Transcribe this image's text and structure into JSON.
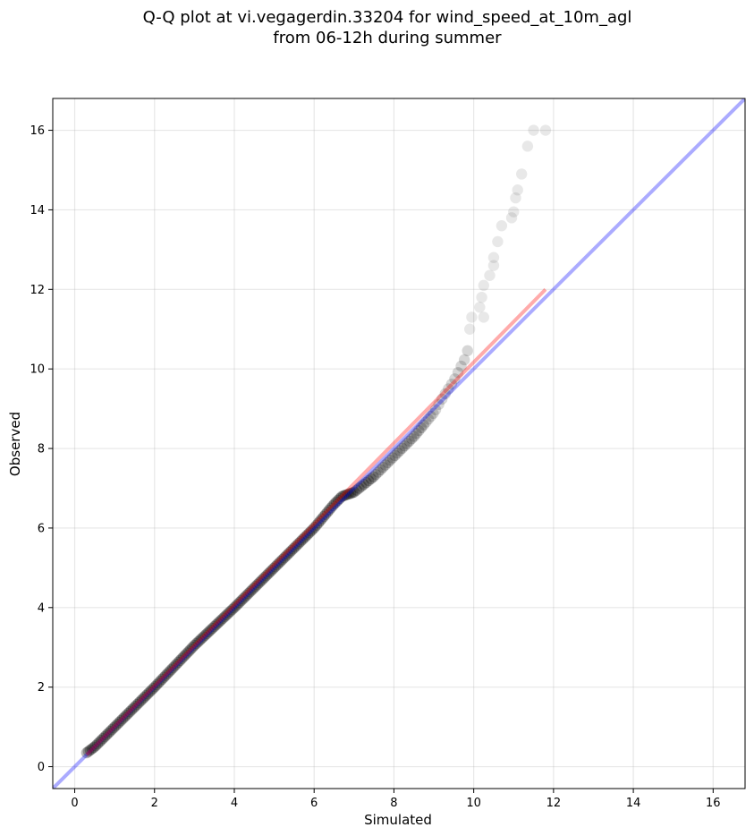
{
  "chart_data": {
    "type": "scatter",
    "title_line1": "Q-Q plot at vi.vegagerdin.33204 for wind_speed_at_10m_agl",
    "title_line2": "from 06-12h during summer",
    "xlabel": "Simulated",
    "ylabel": "Observed",
    "xlim": [
      -0.55,
      16.8
    ],
    "ylim": [
      -0.55,
      16.8
    ],
    "xticks": [
      "0",
      "2",
      "4",
      "6",
      "8",
      "10",
      "12",
      "14",
      "16"
    ],
    "yticks": [
      "0",
      "2",
      "4",
      "6",
      "8",
      "10",
      "12",
      "14",
      "16"
    ],
    "grid": true,
    "colors": {
      "points": "#000000",
      "identity_line": "#0000ff",
      "fit_line": "#ff0000"
    },
    "identity_line": {
      "x": [
        -0.55,
        16.8
      ],
      "y": [
        -0.55,
        16.8
      ]
    },
    "fit_line": {
      "x": [
        0.3,
        11.8
      ],
      "y": [
        0.3,
        12.0
      ]
    },
    "quantile_anchors": {
      "x": [
        0.3,
        0.5,
        1.0,
        2.0,
        3.0,
        4.0,
        5.0,
        6.0,
        6.5,
        6.7,
        7.0,
        7.5,
        8.0,
        8.5,
        9.0,
        9.3,
        9.5,
        9.8,
        10.0,
        10.3,
        10.6,
        10.9,
        11.1,
        11.3,
        11.5,
        11.8
      ],
      "y": [
        0.35,
        0.5,
        1.0,
        2.0,
        3.05,
        4.0,
        5.0,
        6.0,
        6.6,
        6.8,
        6.9,
        7.3,
        7.8,
        8.3,
        8.9,
        9.4,
        9.7,
        10.3,
        11.0,
        11.7,
        12.7,
        13.7,
        14.4,
        15.2,
        16.0,
        16.0
      ]
    },
    "outer_points": [
      {
        "x": 11.5,
        "y": 16.0
      },
      {
        "x": 11.8,
        "y": 16.0
      },
      {
        "x": 11.35,
        "y": 15.6
      },
      {
        "x": 11.2,
        "y": 14.9
      },
      {
        "x": 11.1,
        "y": 14.5
      },
      {
        "x": 11.05,
        "y": 14.3
      },
      {
        "x": 11.0,
        "y": 13.95
      },
      {
        "x": 10.95,
        "y": 13.8
      },
      {
        "x": 10.7,
        "y": 13.6
      },
      {
        "x": 10.6,
        "y": 13.2
      },
      {
        "x": 10.5,
        "y": 12.8
      },
      {
        "x": 10.5,
        "y": 12.6
      },
      {
        "x": 10.4,
        "y": 12.35
      },
      {
        "x": 10.25,
        "y": 12.1
      },
      {
        "x": 10.2,
        "y": 11.8
      },
      {
        "x": 10.25,
        "y": 11.3
      },
      {
        "x": 10.15,
        "y": 11.55
      },
      {
        "x": 9.95,
        "y": 11.3
      },
      {
        "x": 9.9,
        "y": 11.0
      }
    ]
  }
}
